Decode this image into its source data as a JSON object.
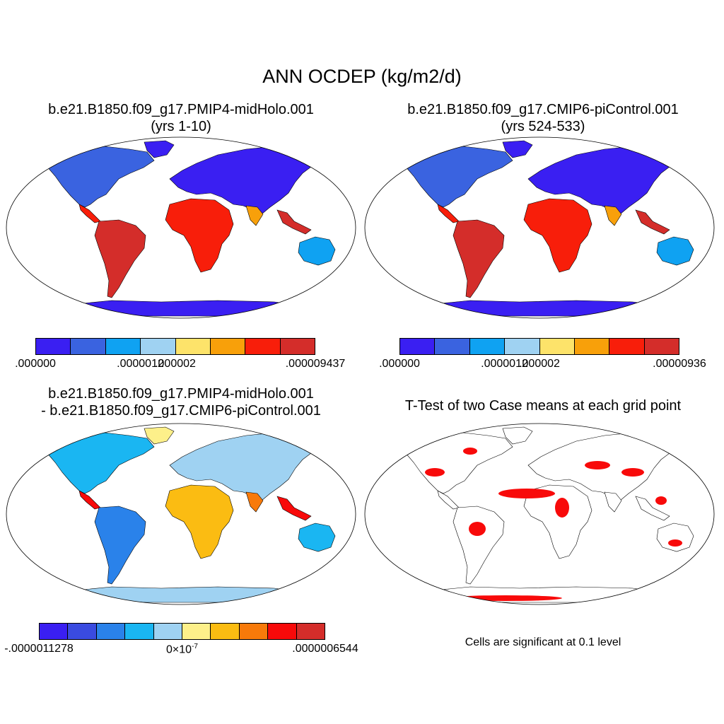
{
  "title": "ANN OCDEP (kg/m2/d)",
  "panels": {
    "top_left": {
      "title_line1": "b.e21.B1850.f09_g17.PMIP4-midHolo.001",
      "title_line2": "(yrs 1-10)"
    },
    "top_right": {
      "title_line1": "b.e21.B1850.f09_g17.CMIP6-piControl.001",
      "title_line2": "(yrs 524-533)"
    },
    "bottom_left": {
      "title_line1": "b.e21.B1850.f09_g17.PMIP4-midHolo.001",
      "title_line2": "- b.e21.B1850.f09_g17.CMIP6-piControl.001"
    },
    "bottom_right": {
      "title": "T-Test of two Case means at each grid point",
      "note": "Cells are significant at 0.1 level"
    }
  },
  "colorbars": {
    "top_left": {
      "colors": [
        "#3a1ff2",
        "#3a63e0",
        "#0fa2f2",
        "#9fd2f2",
        "#fde36a",
        "#f8a00a",
        "#f81e0a",
        "#d42d2a"
      ],
      "labels": [
        ".000000",
        ".0000012",
        ".000002",
        ".000009437"
      ],
      "label_bins": [
        0,
        3,
        4,
        8
      ]
    },
    "top_right": {
      "colors": [
        "#3a1ff2",
        "#3a63e0",
        "#0fa2f2",
        "#9fd2f2",
        "#fde36a",
        "#f8a00a",
        "#f81e0a",
        "#d42d2a"
      ],
      "labels": [
        ".000000",
        ".0000012",
        ".000002",
        ".00000936"
      ],
      "label_bins": [
        0,
        3,
        4,
        8
      ]
    },
    "bottom_left": {
      "colors": [
        "#3a1ff2",
        "#3a4be0",
        "#2a82ea",
        "#1ab6f2",
        "#9fd2f2",
        "#fdf08a",
        "#fbbc12",
        "#f87a0a",
        "#f80a0a",
        "#d42d2a"
      ],
      "labels": [
        "-.0000011278",
        "0×10",
        ".0000006544"
      ],
      "zero_exponent": "-7",
      "label_bins": [
        0,
        5,
        10
      ]
    }
  },
  "colors": {
    "background": "#ffffff",
    "coastline": "#000000",
    "significant_cells": "#f80a0a"
  }
}
